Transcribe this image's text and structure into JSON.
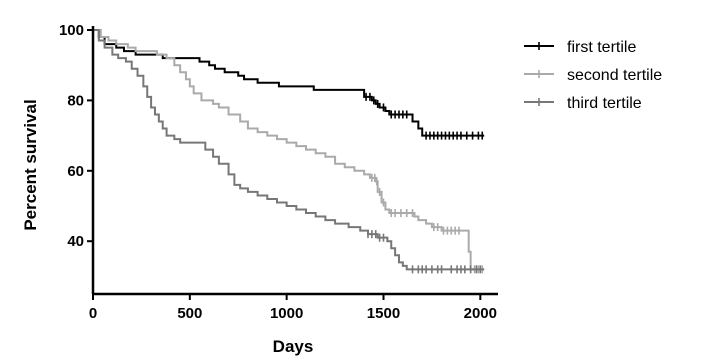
{
  "chart_data": {
    "type": "line",
    "subtype": "kaplan-meier survival curve",
    "title": "",
    "xlabel": "Days",
    "ylabel": "Percent survival",
    "xlim": [
      0,
      2050
    ],
    "ylim": [
      25,
      100
    ],
    "x_ticks": [
      0,
      500,
      1000,
      1500,
      2000
    ],
    "y_ticks": [
      40,
      60,
      80,
      100
    ],
    "grid": false,
    "legend_position": "top-right",
    "series": [
      {
        "name": "first tertile",
        "color": "#000000",
        "steps": [
          [
            0,
            100
          ],
          [
            30,
            98
          ],
          [
            60,
            96
          ],
          [
            120,
            95
          ],
          [
            160,
            94
          ],
          [
            220,
            93
          ],
          [
            320,
            93
          ],
          [
            360,
            92
          ],
          [
            500,
            92
          ],
          [
            550,
            91
          ],
          [
            600,
            90
          ],
          [
            630,
            89
          ],
          [
            650,
            89
          ],
          [
            680,
            88
          ],
          [
            750,
            87
          ],
          [
            780,
            86
          ],
          [
            850,
            85
          ],
          [
            930,
            85
          ],
          [
            960,
            84
          ],
          [
            1100,
            84
          ],
          [
            1140,
            83
          ],
          [
            1380,
            83
          ],
          [
            1400,
            81
          ],
          [
            1440,
            80
          ],
          [
            1460,
            79
          ],
          [
            1480,
            78
          ],
          [
            1510,
            77
          ],
          [
            1530,
            76
          ],
          [
            1620,
            76
          ],
          [
            1650,
            74
          ],
          [
            1680,
            72
          ],
          [
            1700,
            70
          ],
          [
            2020,
            70
          ]
        ],
        "censored": [
          1410,
          1430,
          1450,
          1470,
          1500,
          1540,
          1560,
          1580,
          1600,
          1620,
          1720,
          1740,
          1760,
          1780,
          1800,
          1820,
          1840,
          1860,
          1880,
          1900,
          1930,
          1960,
          1990,
          2010
        ]
      },
      {
        "name": "second tertile",
        "color": "#aaaaaa",
        "steps": [
          [
            0,
            100
          ],
          [
            40,
            98
          ],
          [
            80,
            97
          ],
          [
            120,
            96
          ],
          [
            180,
            95
          ],
          [
            220,
            94
          ],
          [
            300,
            94
          ],
          [
            330,
            93
          ],
          [
            380,
            92
          ],
          [
            420,
            90
          ],
          [
            450,
            88
          ],
          [
            480,
            86
          ],
          [
            500,
            84
          ],
          [
            520,
            82
          ],
          [
            560,
            80
          ],
          [
            620,
            79
          ],
          [
            650,
            78
          ],
          [
            700,
            76
          ],
          [
            760,
            74
          ],
          [
            800,
            72
          ],
          [
            850,
            71
          ],
          [
            900,
            70
          ],
          [
            950,
            69
          ],
          [
            1000,
            68
          ],
          [
            1050,
            67
          ],
          [
            1100,
            66
          ],
          [
            1150,
            65
          ],
          [
            1200,
            64
          ],
          [
            1250,
            62
          ],
          [
            1300,
            61
          ],
          [
            1350,
            60
          ],
          [
            1400,
            59
          ],
          [
            1430,
            58
          ],
          [
            1460,
            57
          ],
          [
            1470,
            54
          ],
          [
            1490,
            51
          ],
          [
            1510,
            49
          ],
          [
            1530,
            48
          ],
          [
            1660,
            47
          ],
          [
            1680,
            46
          ],
          [
            1720,
            45
          ],
          [
            1750,
            44
          ],
          [
            1800,
            43
          ],
          [
            1920,
            43
          ],
          [
            1940,
            37
          ],
          [
            1950,
            32
          ],
          [
            2020,
            32
          ]
        ],
        "censored": [
          1440,
          1455,
          1465,
          1480,
          1500,
          1540,
          1560,
          1590,
          1620,
          1650,
          1760,
          1780,
          1810,
          1830,
          1850,
          1870,
          1890,
          1970,
          1990,
          2010
        ]
      },
      {
        "name": "third tertile",
        "color": "#777777",
        "steps": [
          [
            0,
            100
          ],
          [
            30,
            97
          ],
          [
            60,
            95
          ],
          [
            100,
            93
          ],
          [
            130,
            92
          ],
          [
            170,
            91
          ],
          [
            200,
            89
          ],
          [
            230,
            87
          ],
          [
            260,
            84
          ],
          [
            280,
            81
          ],
          [
            300,
            78
          ],
          [
            320,
            76
          ],
          [
            340,
            74
          ],
          [
            360,
            72
          ],
          [
            380,
            70
          ],
          [
            420,
            69
          ],
          [
            450,
            68
          ],
          [
            550,
            68
          ],
          [
            580,
            66
          ],
          [
            620,
            64
          ],
          [
            650,
            62
          ],
          [
            700,
            59
          ],
          [
            730,
            56
          ],
          [
            760,
            55
          ],
          [
            800,
            54
          ],
          [
            850,
            53
          ],
          [
            900,
            52
          ],
          [
            950,
            51
          ],
          [
            1000,
            50
          ],
          [
            1050,
            49
          ],
          [
            1100,
            48
          ],
          [
            1150,
            47
          ],
          [
            1200,
            46
          ],
          [
            1250,
            45
          ],
          [
            1320,
            44
          ],
          [
            1380,
            43
          ],
          [
            1420,
            42
          ],
          [
            1470,
            41
          ],
          [
            1520,
            40
          ],
          [
            1540,
            38
          ],
          [
            1560,
            36
          ],
          [
            1580,
            34
          ],
          [
            1600,
            33
          ],
          [
            1620,
            32
          ],
          [
            2020,
            32
          ]
        ],
        "censored": [
          1420,
          1440,
          1460,
          1480,
          1500,
          1650,
          1680,
          1700,
          1720,
          1750,
          1780,
          1800,
          1850,
          1880,
          1900,
          1920,
          1950,
          1980,
          2000
        ]
      }
    ]
  }
}
